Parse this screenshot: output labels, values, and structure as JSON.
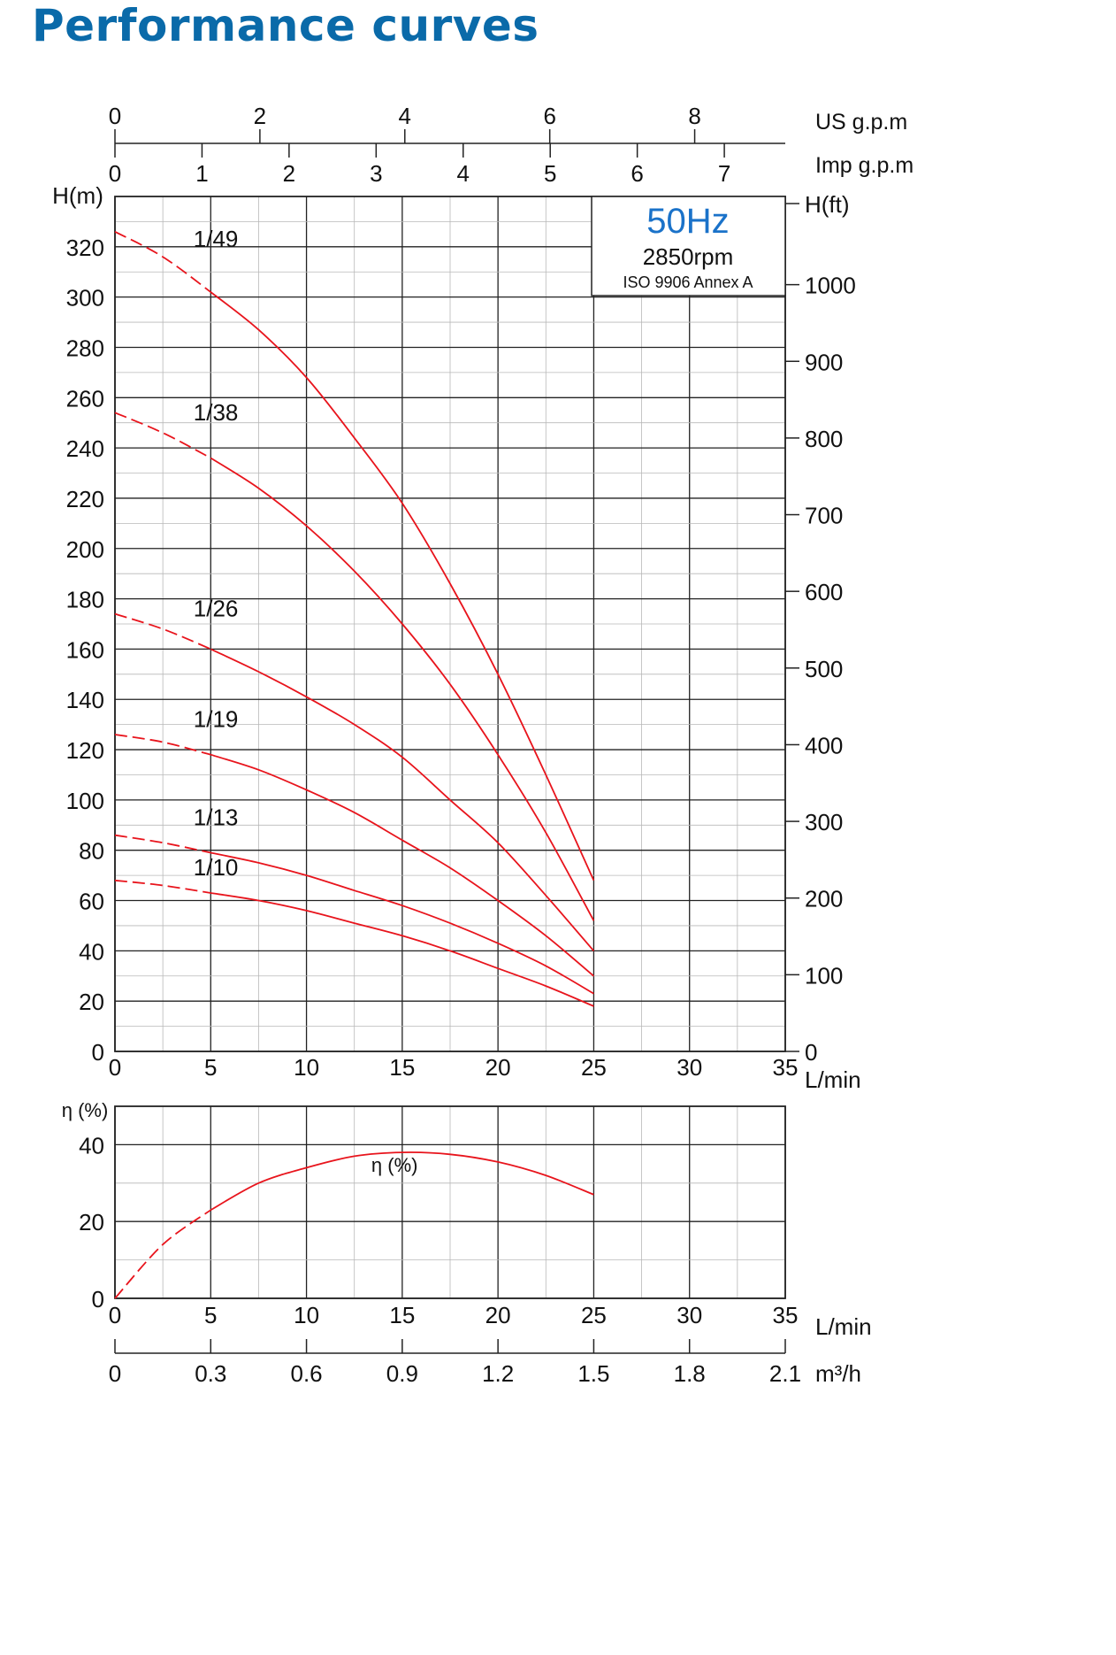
{
  "title": "Performance curves",
  "colors": {
    "title": "#0a6aa9",
    "curve": "#e8141c",
    "hz_label": "#1a72c9"
  },
  "chart_data": [
    {
      "type": "line",
      "title": "",
      "info": {
        "frequency": "50Hz",
        "speed": "2850rpm",
        "standard": "ISO 9906 Annex A"
      },
      "xlabel": "L/min",
      "ylabel": "H(m)",
      "y2label": "H(ft)",
      "xlim": [
        0,
        35
      ],
      "ylim": [
        0,
        340
      ],
      "y2lim": [
        0,
        1115
      ],
      "xticks": [
        0,
        5,
        10,
        15,
        20,
        25,
        30,
        35
      ],
      "yticks": [
        0,
        20,
        40,
        60,
        80,
        100,
        120,
        140,
        160,
        180,
        200,
        220,
        240,
        260,
        280,
        300,
        320
      ],
      "y2ticks": [
        0,
        100,
        200,
        300,
        400,
        500,
        600,
        700,
        800,
        900,
        1000
      ],
      "top_axes": [
        {
          "label": "US g.p.m",
          "ticks": [
            0,
            2,
            4,
            6,
            8
          ],
          "max": 9.25
        },
        {
          "label": "Imp g.p.m",
          "ticks": [
            0,
            1,
            2,
            3,
            4,
            5,
            6,
            7
          ],
          "max": 7.7
        }
      ],
      "grid": true,
      "dashed_until_x": 5,
      "series": [
        {
          "name": "1/49",
          "label_at": [
            4.1,
            320
          ],
          "x": [
            0,
            2.5,
            5,
            7.5,
            10,
            12.5,
            15,
            17.5,
            20,
            22.5,
            25
          ],
          "y": [
            326,
            316,
            302,
            287,
            268,
            244,
            218,
            186,
            150,
            110,
            68
          ]
        },
        {
          "name": "1/38",
          "label_at": [
            4.1,
            251
          ],
          "x": [
            0,
            2.5,
            5,
            7.5,
            10,
            12.5,
            15,
            17.5,
            20,
            22.5,
            25
          ],
          "y": [
            254,
            246,
            236,
            224,
            209,
            191,
            170,
            146,
            118,
            87,
            52
          ]
        },
        {
          "name": "1/26",
          "label_at": [
            4.1,
            173
          ],
          "x": [
            0,
            2.5,
            5,
            7.5,
            10,
            12.5,
            15,
            17.5,
            20,
            22.5,
            25
          ],
          "y": [
            174,
            168,
            160,
            151,
            141,
            130,
            117,
            100,
            83,
            62,
            40
          ]
        },
        {
          "name": "1/19",
          "label_at": [
            4.1,
            129
          ],
          "x": [
            0,
            2.5,
            5,
            7.5,
            10,
            12.5,
            15,
            17.5,
            20,
            22.5,
            25
          ],
          "y": [
            126,
            123,
            118,
            112,
            104,
            95,
            84,
            73,
            60,
            46,
            30
          ]
        },
        {
          "name": "1/13",
          "label_at": [
            4.1,
            90
          ],
          "x": [
            0,
            2.5,
            5,
            7.5,
            10,
            12.5,
            15,
            17.5,
            20,
            22.5,
            25
          ],
          "y": [
            86,
            83,
            79,
            75,
            70,
            64,
            58,
            51,
            43,
            34,
            23
          ]
        },
        {
          "name": "1/10",
          "label_at": [
            4.1,
            70
          ],
          "x": [
            0,
            2.5,
            5,
            7.5,
            10,
            12.5,
            15,
            17.5,
            20,
            22.5,
            25
          ],
          "y": [
            68,
            66,
            63,
            60,
            56,
            51,
            46,
            40,
            33,
            26,
            18
          ]
        }
      ]
    },
    {
      "type": "line",
      "title": "",
      "xlabel": "L/min",
      "ylabel": "η (%)",
      "xlim": [
        0,
        35
      ],
      "ylim": [
        0,
        50
      ],
      "xticks": [
        0,
        5,
        10,
        15,
        20,
        25,
        30,
        35
      ],
      "yticks": [
        0,
        20,
        40
      ],
      "bottom_axis": {
        "label": "m³/h",
        "ticks": [
          "0",
          "0.3",
          "0.6",
          "0.9",
          "1.2",
          "1.5",
          "1.8",
          "2.1"
        ],
        "max": 2.1
      },
      "grid": true,
      "dashed_until_x": 5,
      "series": [
        {
          "name": "η (%)",
          "label_at": [
            14.6,
            33
          ],
          "x": [
            0,
            2.5,
            5,
            7.5,
            10,
            12.5,
            15,
            17.5,
            20,
            22.5,
            25
          ],
          "y": [
            0,
            14,
            23,
            30,
            34,
            37,
            38,
            37.5,
            35.5,
            32,
            27
          ]
        }
      ]
    }
  ]
}
